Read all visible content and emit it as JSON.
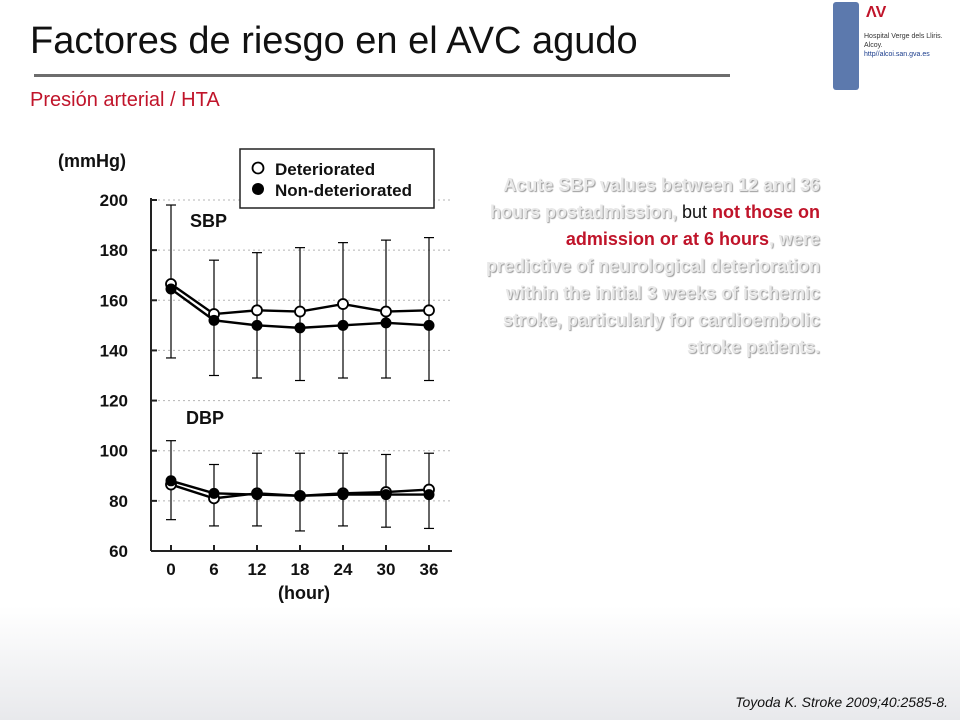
{
  "slide": {
    "title": "Factores de riesgo en el AVC agudo",
    "subtitle": "Presión arterial / HTA",
    "citation": "Toyoda K. Stroke 2009;40:2585-8.",
    "logo": {
      "mark": "ΛV",
      "lines": [
        "Hospital Verge dels Lliris.",
        "Alcoy."
      ],
      "url": "http//alcoi.san.gva.es"
    },
    "annotation": {
      "part1": "Acute SBP values between 12 and 36 hours postadmission,",
      "part2": " but ",
      "part3": "not those on admission or at 6 hours",
      "part4": ",",
      "part5": " were predictive of neurological deterioration within the initial 3 weeks of ischemic stroke, particularly for cardioembolic stroke patients."
    },
    "colors": {
      "accent_red": "#c0142a",
      "logo_blue": "#5c79ad"
    }
  },
  "chart_data": {
    "type": "line",
    "ylabel": "(mmHg)",
    "xlabel": "(hour)",
    "x": [
      0,
      6,
      12,
      18,
      24,
      30,
      36
    ],
    "xticks": [
      "0",
      "6",
      "12",
      "18",
      "24",
      "30",
      "36"
    ],
    "ylim": [
      60,
      200
    ],
    "yticks": [
      60,
      80,
      100,
      120,
      140,
      160,
      180,
      200
    ],
    "grid": "horizontal dotted",
    "legend_position": "top",
    "groups": [
      {
        "label": "SBP",
        "series": [
          {
            "name": "Deteriorated",
            "marker": "open-circle",
            "values": [
              166.5,
              154.5,
              156,
              155.5,
              158.5,
              155.5,
              156
            ],
            "err_upper": [
              198,
              176,
              179,
              181,
              183,
              184,
              185
            ],
            "err_lower": [
              137,
              130,
              129,
              128,
              129,
              129,
              128
            ]
          },
          {
            "name": "Non-deteriorated",
            "marker": "filled-circle",
            "values": [
              164.5,
              152,
              150,
              149,
              150,
              151,
              150
            ]
          }
        ]
      },
      {
        "label": "DBP",
        "series": [
          {
            "name": "Deteriorated",
            "marker": "open-circle",
            "values": [
              86.5,
              81,
              83,
              82,
              83,
              83.5,
              84.5
            ],
            "err_upper": [
              104,
              94.5,
              99,
              99,
              99,
              98.5,
              99
            ],
            "err_lower": [
              72.5,
              70,
              70,
              68,
              70,
              69.5,
              69
            ]
          },
          {
            "name": "Non-deteriorated",
            "marker": "filled-circle",
            "values": [
              88,
              83,
              82.5,
              82,
              82.5,
              82.5,
              82.5
            ]
          }
        ]
      }
    ]
  }
}
